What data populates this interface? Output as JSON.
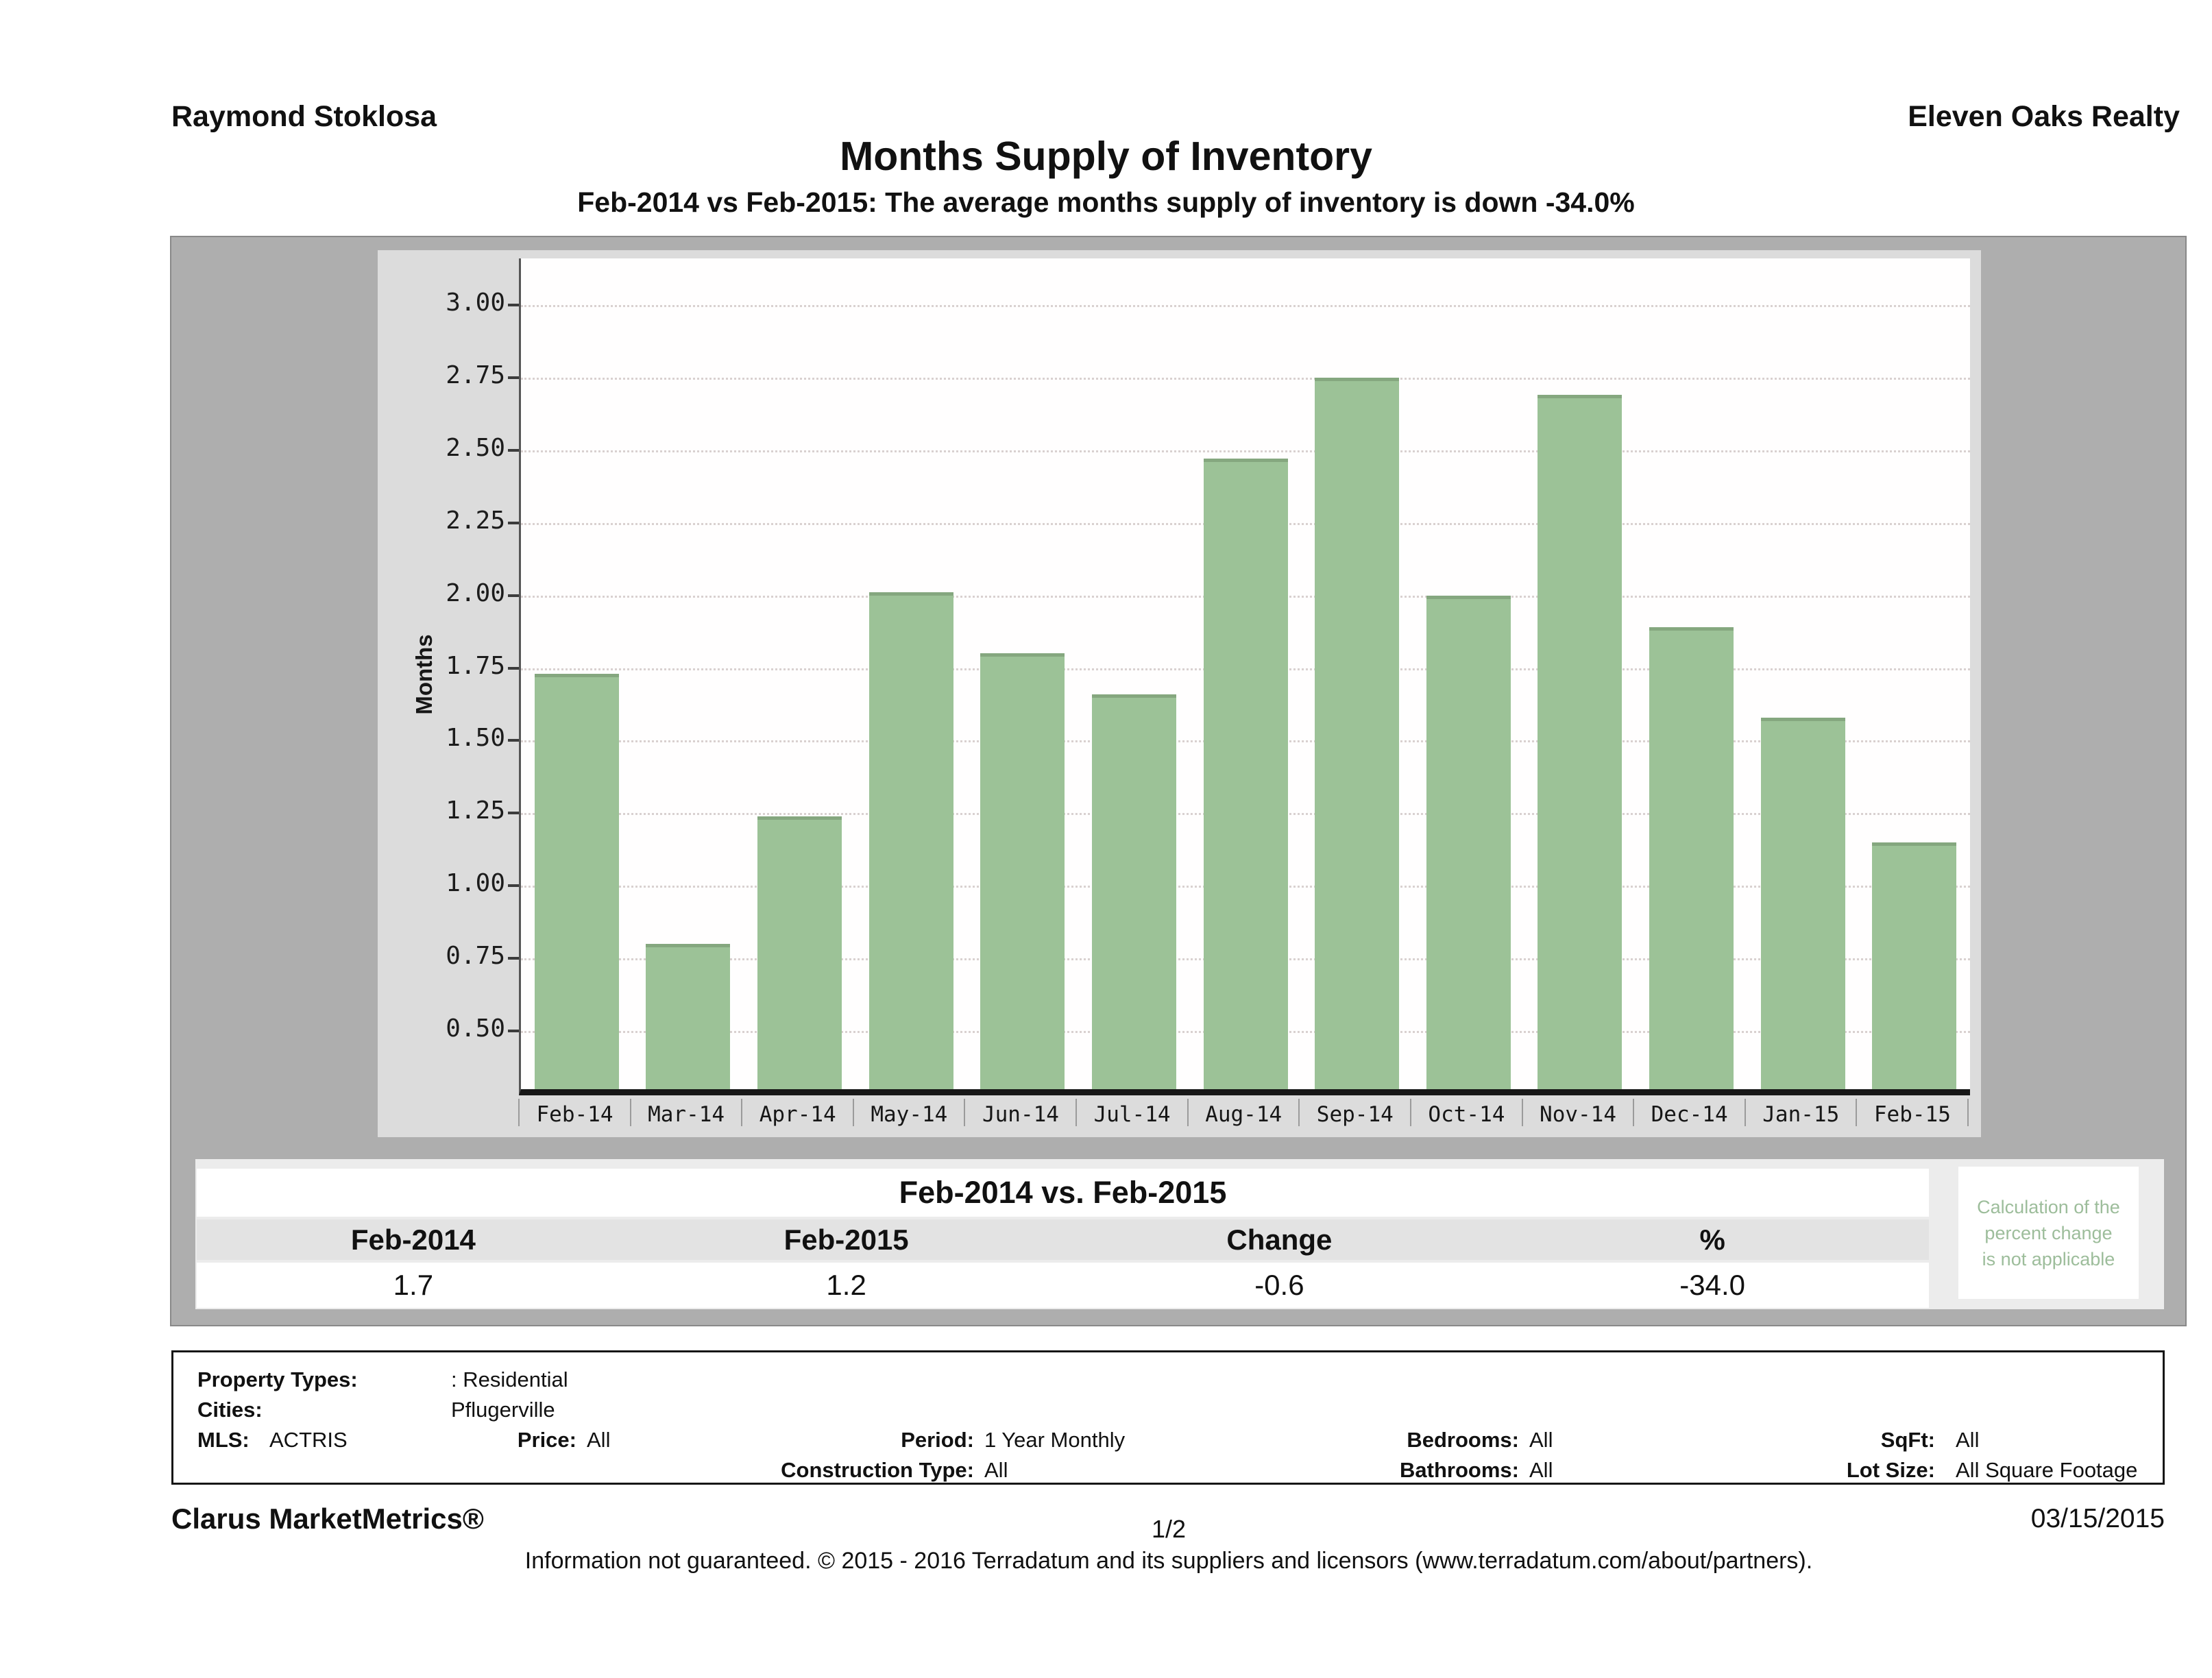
{
  "header": {
    "agent": "Raymond Stoklosa",
    "brokerage": "Eleven Oaks Realty"
  },
  "title": "Months Supply of Inventory",
  "subtitle": "Feb-2014 vs Feb-2015: The average months supply of inventory is down -34.0%",
  "chart_data": {
    "type": "bar",
    "title": "Months Supply of Inventory",
    "xlabel": "",
    "ylabel": "Months",
    "categories": [
      "Feb-14",
      "Mar-14",
      "Apr-14",
      "May-14",
      "Jun-14",
      "Jul-14",
      "Aug-14",
      "Sep-14",
      "Oct-14",
      "Nov-14",
      "Dec-14",
      "Jan-15",
      "Feb-15"
    ],
    "values": [
      1.73,
      0.8,
      1.24,
      2.01,
      1.8,
      1.66,
      2.47,
      2.75,
      2.0,
      2.69,
      1.89,
      1.58,
      1.15
    ],
    "yticks": [
      3.0,
      2.75,
      2.5,
      2.25,
      2.0,
      1.75,
      1.5,
      1.25,
      1.0,
      0.75,
      0.5
    ],
    "ylim": [
      0.3,
      3.16
    ],
    "grid": "horizontal-dotted",
    "legend": "none",
    "bar_color": "#9cc297"
  },
  "summary_table": {
    "title": "Feb-2014 vs. Feb-2015",
    "columns": [
      "Feb-2014",
      "Feb-2015",
      "Change",
      "%"
    ],
    "values": [
      "1.7",
      "1.2",
      "-0.6",
      "-34.0"
    ]
  },
  "calc_note": {
    "lines": [
      "Calculation of the",
      "percent change",
      "is not applicable"
    ]
  },
  "params": {
    "property_types_label": "Property Types:",
    "property_types_value": ": Residential",
    "cities_label": "Cities:",
    "cities_value": "Pflugerville",
    "mls_label": "MLS:",
    "mls_value": "ACTRIS",
    "price_label": "Price:",
    "price_value": "All",
    "period_label": "Period:",
    "period_value": "1 Year Monthly",
    "construction_label": "Construction Type:",
    "construction_value": "All",
    "bedrooms_label": "Bedrooms:",
    "bedrooms_value": "All",
    "bathrooms_label": "Bathrooms:",
    "bathrooms_value": "All",
    "sqft_label": "SqFt:",
    "sqft_value": "All",
    "lotsize_label": "Lot Size:",
    "lotsize_value": "All Square Footage"
  },
  "footer": {
    "brand": "Clarus MarketMetrics®",
    "page": "1/2",
    "date": "03/15/2015",
    "disclaimer": "Information not guaranteed. © 2015 - 2016 Terradatum and its suppliers and licensors (www.terradatum.com/about/partners)."
  }
}
